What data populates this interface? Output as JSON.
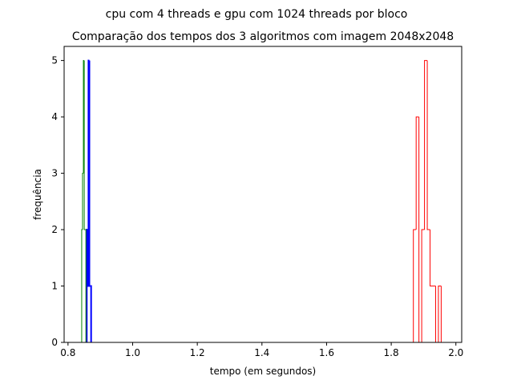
{
  "chart_data": {
    "type": "histogram",
    "suptitle": "cpu com 4 threads e gpu com 1024 threads por bloco",
    "title": "Comparação dos tempos dos 3 algoritmos com imagem 2048x2048",
    "xlabel": "tempo (em segundos)",
    "ylabel": "frequência",
    "xlim": [
      0.788,
      2.018
    ],
    "ylim": [
      0,
      5.25
    ],
    "xticks": [
      0.8,
      1.0,
      1.2,
      1.4,
      1.6,
      1.8,
      2.0
    ],
    "xtick_labels": [
      "0.8",
      "1.0",
      "1.2",
      "1.4",
      "1.6",
      "1.8",
      "2.0"
    ],
    "yticks": [
      0,
      1,
      2,
      3,
      4,
      5
    ],
    "ytick_labels": [
      "0",
      "1",
      "2",
      "3",
      "4",
      "5"
    ],
    "grid": false,
    "histtype": "step",
    "series": [
      {
        "color": "#ff0000",
        "linewidth": 1,
        "bin_edges": [
          1.8685,
          1.8771,
          1.8857,
          1.8943,
          1.9029,
          1.9115,
          1.9201,
          1.9287,
          1.9373,
          1.9459,
          1.9545,
          1.9631
        ],
        "counts": [
          2,
          4,
          0,
          2,
          5,
          2,
          1,
          1,
          0,
          1,
          0
        ]
      },
      {
        "color": "#0000ff",
        "linewidth": 2,
        "bin_edges": [
          0.858,
          0.8607,
          0.8634,
          0.8661,
          0.8688,
          0.8715
        ],
        "counts": [
          2,
          1,
          5,
          1,
          1
        ]
      },
      {
        "color": "#008000",
        "linewidth": 1,
        "bin_edges": [
          0.8424,
          0.845,
          0.8476,
          0.8502,
          0.8528,
          0.8554
        ],
        "counts": [
          2,
          3,
          5,
          2,
          2
        ]
      }
    ]
  }
}
